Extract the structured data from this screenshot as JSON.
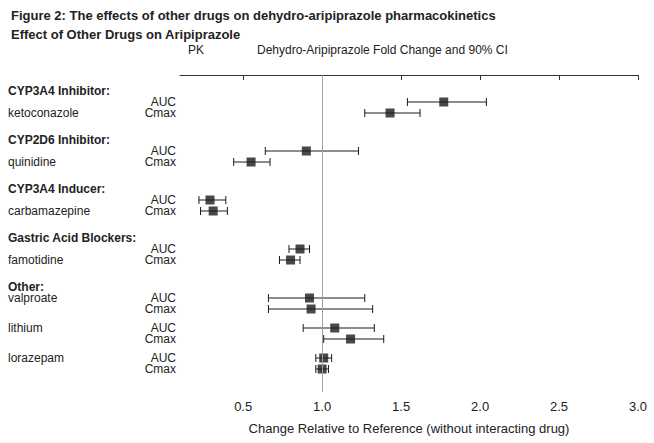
{
  "chart_data": {
    "type": "forest",
    "title": "Figure 2: The effects of other drugs on dehydro-aripiprazole pharmacokinetics",
    "subtitle": "Effect of Other Drugs on Aripiprazole",
    "column_headers": [
      "PK",
      "Dehydro-Aripiprazole Fold Change and 90% CI"
    ],
    "x_label": "Change Relative to Reference (without interacting drug)",
    "xlim": [
      0.1,
      3.0
    ],
    "xticks": [
      0.5,
      {
        "value": 1,
        "label": "1.0"
      },
      1.5,
      {
        "value": 2,
        "label": "2.0"
      },
      2.5,
      {
        "value": 3,
        "label": "3.0"
      }
    ],
    "reference": 1,
    "grid": false,
    "color": "#1a1a1a",
    "marker": "square",
    "groups": [
      {
        "label": "CYP3A4 Inhibitor:",
        "drugs": [
          {
            "name": "ketoconazole",
            "rows": [
              {
                "pk": "AUC",
                "value": 1.77,
                "ci": [
                  1.54,
                  2.04
                ]
              },
              {
                "pk": "Cmax",
                "value": 1.43,
                "ci": [
                  1.27,
                  1.62
                ]
              }
            ]
          }
        ]
      },
      {
        "label": "CYP2D6 Inhibitor:",
        "drugs": [
          {
            "name": "quinidine",
            "rows": [
              {
                "pk": "AUC",
                "value": 0.9,
                "ci": [
                  0.64,
                  1.23
                ]
              },
              {
                "pk": "Cmax",
                "value": 0.55,
                "ci": [
                  0.44,
                  0.67
                ]
              }
            ]
          }
        ]
      },
      {
        "label": "CYP3A4 Inducer:",
        "drugs": [
          {
            "name": "carbamazepine",
            "rows": [
              {
                "pk": "AUC",
                "value": 0.29,
                "ci": [
                  0.22,
                  0.39
                ]
              },
              {
                "pk": "Cmax",
                "value": 0.31,
                "ci": [
                  0.23,
                  0.4
                ]
              }
            ]
          }
        ]
      },
      {
        "label": "Gastric Acid Blockers:",
        "drugs": [
          {
            "name": "famotidine",
            "rows": [
              {
                "pk": "AUC",
                "value": 0.86,
                "ci": [
                  0.79,
                  0.92
                ]
              },
              {
                "pk": "Cmax",
                "value": 0.8,
                "ci": [
                  0.73,
                  0.86
                ]
              }
            ]
          }
        ]
      },
      {
        "label": "Other:",
        "drugs": [
          {
            "name": "valproate",
            "rows": [
              {
                "pk": "AUC",
                "value": 0.92,
                "ci": [
                  0.66,
                  1.27
                ]
              },
              {
                "pk": "Cmax",
                "value": 0.93,
                "ci": [
                  0.66,
                  1.32
                ]
              }
            ]
          },
          {
            "name": "lithium",
            "rows": [
              {
                "pk": "AUC",
                "value": 1.08,
                "ci": [
                  0.88,
                  1.33
                ]
              },
              {
                "pk": "Cmax",
                "value": 1.18,
                "ci": [
                  1.01,
                  1.39
                ]
              }
            ]
          },
          {
            "name": "lorazepam",
            "rows": [
              {
                "pk": "AUC",
                "value": 1.01,
                "ci": [
                  0.96,
                  1.06
                ]
              },
              {
                "pk": "Cmax",
                "value": 1.0,
                "ci": [
                  0.96,
                  1.04
                ]
              }
            ]
          }
        ]
      }
    ]
  }
}
